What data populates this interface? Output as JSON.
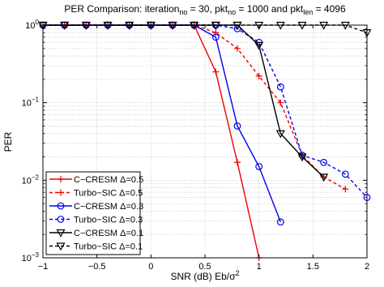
{
  "chart_data": {
    "type": "line",
    "title": {
      "prefix": "PER Comparison: iteration",
      "sub1": "no",
      "mid1": " = 30, pkt",
      "sub2": "no",
      "mid2": " = 1000 and pkt",
      "sub3": "len",
      "suffix": " = 4096"
    },
    "xlabel": {
      "main": "SNR (dB) Eb/σ",
      "sup": "2"
    },
    "ylabel": "PER",
    "xlim": [
      -1,
      2
    ],
    "ylim": [
      0.001,
      1
    ],
    "yscale": "log",
    "grid": true,
    "legend_position": "bottom-left",
    "xticks": [
      {
        "v": -1,
        "label": "−1"
      },
      {
        "v": -0.5,
        "label": "−0.5"
      },
      {
        "v": 0,
        "label": "0"
      },
      {
        "v": 0.5,
        "label": "0.5"
      },
      {
        "v": 1,
        "label": "1"
      },
      {
        "v": 1.5,
        "label": "1.5"
      },
      {
        "v": 2,
        "label": "2"
      }
    ],
    "yticks": [
      {
        "v": 1,
        "base": "10",
        "exp": "0"
      },
      {
        "v": 0.1,
        "base": "10",
        "exp": "−1"
      },
      {
        "v": 0.01,
        "base": "10",
        "exp": "−2"
      },
      {
        "v": 0.001,
        "base": "10",
        "exp": "−3"
      }
    ],
    "series": [
      {
        "name": "C−CRESM Δ=0.5",
        "color": "#ee0000",
        "dash": "solid",
        "marker": "plus",
        "x": [
          -1,
          -0.8,
          -0.6,
          -0.4,
          -0.2,
          0,
          0.2,
          0.4,
          0.6,
          0.8,
          1.0
        ],
        "y": [
          1,
          1,
          1,
          1,
          1,
          1,
          1,
          1,
          0.25,
          0.017,
          0.001
        ]
      },
      {
        "name": "Turbo−SIC Δ=0.5",
        "color": "#ee0000",
        "dash": "dashed",
        "marker": "plus",
        "x": [
          -1,
          -0.8,
          -0.6,
          -0.4,
          -0.2,
          0,
          0.2,
          0.4,
          0.6,
          0.8,
          1.0,
          1.2,
          1.4,
          1.6,
          1.8
        ],
        "y": [
          1,
          1,
          1,
          1,
          1,
          1,
          1,
          1,
          0.8,
          0.5,
          0.22,
          0.1,
          0.021,
          0.011,
          0.0077
        ]
      },
      {
        "name": "C−CRESM Δ=0.3",
        "color": "#0000ee",
        "dash": "solid",
        "marker": "circle",
        "x": [
          -1,
          -0.8,
          -0.6,
          -0.4,
          -0.2,
          0,
          0.2,
          0.4,
          0.6,
          0.8,
          1.0,
          1.2
        ],
        "y": [
          1,
          1,
          1,
          1,
          1,
          1,
          1,
          1,
          0.7,
          0.05,
          0.015,
          0.0029
        ]
      },
      {
        "name": "Turbo−SIC Δ=0.3",
        "color": "#0000ee",
        "dash": "dashed",
        "marker": "circle",
        "x": [
          -1,
          -0.8,
          -0.6,
          -0.4,
          -0.2,
          0,
          0.2,
          0.4,
          0.6,
          0.8,
          1.0,
          1.2,
          1.4,
          1.6,
          1.8,
          2.0
        ],
        "y": [
          1,
          1,
          1,
          1,
          1,
          1,
          1,
          1,
          1,
          0.9,
          0.6,
          0.16,
          0.021,
          0.017,
          0.012,
          0.006
        ]
      },
      {
        "name": "C−CRESM Δ=0.1",
        "color": "#000000",
        "dash": "solid",
        "marker": "triangle-down",
        "x": [
          -1,
          -0.8,
          -0.6,
          -0.4,
          -0.2,
          0,
          0.2,
          0.4,
          0.6,
          0.8,
          1.0,
          1.2,
          1.4,
          1.6
        ],
        "y": [
          1,
          1,
          1,
          1,
          1,
          1,
          1,
          1,
          1,
          1,
          0.55,
          0.04,
          0.02,
          0.011
        ]
      },
      {
        "name": "Turbo−SIC Δ=0.1",
        "color": "#000000",
        "dash": "dashed",
        "marker": "triangle-down",
        "x": [
          -1,
          -0.8,
          -0.6,
          -0.4,
          -0.2,
          0,
          0.2,
          0.4,
          0.6,
          0.8,
          1.0,
          1.2,
          1.4,
          1.6,
          1.8,
          2.0
        ],
        "y": [
          1,
          1,
          1,
          1,
          1,
          1,
          1,
          1,
          1,
          1,
          1,
          1,
          1,
          1,
          1,
          0.8
        ]
      }
    ]
  }
}
